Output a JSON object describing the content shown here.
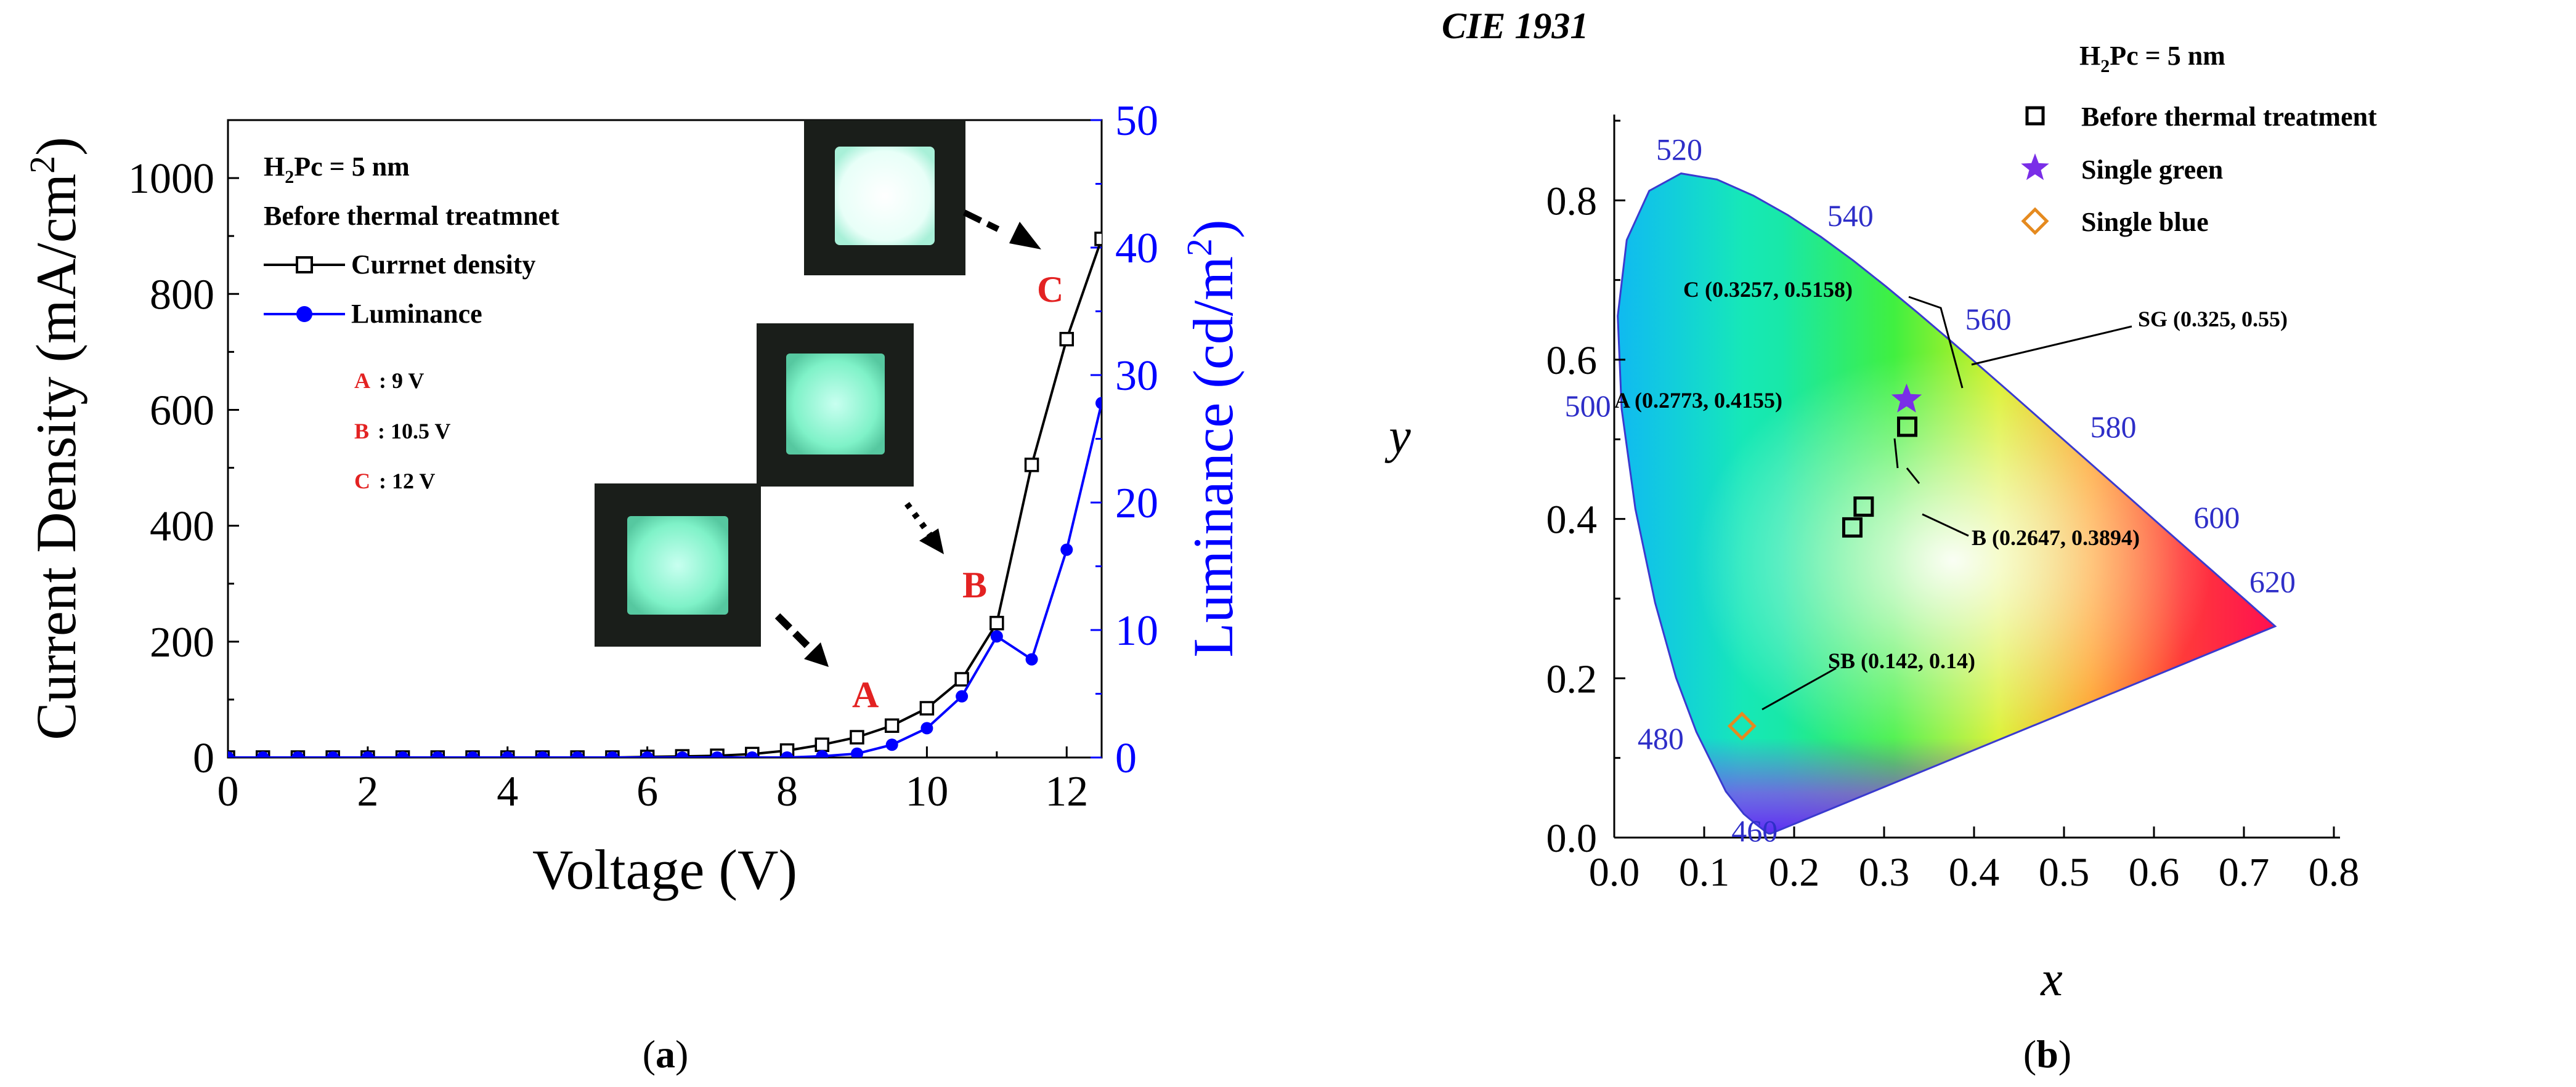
{
  "chart_data": [
    {
      "panel": "a",
      "type": "line",
      "caption_pre": "(",
      "caption_letter": "a",
      "caption_post": ")",
      "xlabel": "Voltage (V)",
      "ylabel_left": "Current Density (mA/cm",
      "ylabel_left_sup": "2",
      "ylabel_left_end": ")",
      "ylabel_right": "Luminance (cd/m",
      "ylabel_right_sup": "2",
      "ylabel_right_end": ")",
      "xlim": [
        0,
        12.5
      ],
      "ylim_left": [
        0,
        1100
      ],
      "ylim_right": [
        0,
        50
      ],
      "xticks": [
        0,
        2,
        4,
        6,
        8,
        10,
        12
      ],
      "yticks_left": [
        0,
        200,
        400,
        600,
        800,
        1000
      ],
      "yticks_right": [
        0,
        10,
        20,
        30,
        40,
        50
      ],
      "series": [
        {
          "name": "Currnet density",
          "axis": "left",
          "color": "#000000",
          "marker": "open-square",
          "x": [
            0,
            0.5,
            1,
            1.5,
            2,
            2.5,
            3,
            3.5,
            4,
            4.5,
            5,
            5.5,
            6,
            6.5,
            7,
            7.5,
            8,
            8.5,
            9,
            9.5,
            10,
            10.5,
            11,
            11.5,
            12,
            12.5
          ],
          "y": [
            0,
            0,
            0,
            0,
            0,
            0,
            0,
            0,
            0,
            0,
            0,
            0,
            1,
            2,
            3,
            6,
            12,
            22,
            35,
            55,
            85,
            135,
            232,
            505,
            722,
            895
          ]
        },
        {
          "name": "Luminance",
          "axis": "right",
          "color": "#0000ff",
          "marker": "filled-circle",
          "x": [
            0,
            0.5,
            1,
            1.5,
            2,
            2.5,
            3,
            3.5,
            4,
            4.5,
            5,
            5.5,
            6,
            6.5,
            7,
            7.5,
            8,
            8.5,
            9,
            9.5,
            10,
            10.5,
            11,
            11.5,
            12,
            12.5
          ],
          "y": [
            0,
            0,
            0,
            0,
            0,
            0,
            0,
            0,
            0,
            0,
            0,
            0,
            0,
            0,
            0,
            0,
            0,
            0.1,
            0.3,
            1.0,
            2.3,
            4.8,
            9.5,
            7.7,
            16.3,
            27.8
          ]
        }
      ],
      "legend": {
        "title_pre": "H",
        "title_sub": "2",
        "title_post": "Pc = 5 nm",
        "subtitle": "Before thermal treatmnet",
        "entries": [
          "Currnet density",
          "Luminance"
        ],
        "voltage_labels": [
          {
            "letter": "A",
            "value": ": 9 V"
          },
          {
            "letter": "B",
            "value": ": 10.5 V"
          },
          {
            "letter": "C",
            "value": ": 12 V"
          }
        ]
      },
      "annotations": [
        "A",
        "B",
        "C"
      ],
      "colors": {
        "annotation": "#e32222",
        "current": "#000000",
        "luminance": "#0000ff",
        "emission": "#7ff2c8"
      }
    },
    {
      "panel": "b",
      "type": "scatter",
      "title": "CIE 1931",
      "caption_pre": "(",
      "caption_letter": "b",
      "caption_post": ")",
      "xlabel": "x",
      "ylabel": "y",
      "xlim": [
        0.0,
        0.8
      ],
      "ylim": [
        0.0,
        0.9
      ],
      "xticks": [
        "0.0",
        "0.1",
        "0.2",
        "0.3",
        "0.4",
        "0.5",
        "0.6",
        "0.7",
        "0.8"
      ],
      "yticks": [
        "0.0",
        "0.2",
        "0.4",
        "0.6",
        "0.8"
      ],
      "wavelength_labels": [
        {
          "nm": "460",
          "x": 0.144,
          "y": 0.03
        },
        {
          "nm": "480",
          "x": 0.091,
          "y": 0.133
        },
        {
          "nm": "500",
          "x": 0.008,
          "y": 0.538
        },
        {
          "nm": "520",
          "x": 0.074,
          "y": 0.834
        },
        {
          "nm": "540",
          "x": 0.23,
          "y": 0.754
        },
        {
          "nm": "560",
          "x": 0.373,
          "y": 0.624
        },
        {
          "nm": "580",
          "x": 0.512,
          "y": 0.487
        },
        {
          "nm": "600",
          "x": 0.627,
          "y": 0.372
        },
        {
          "nm": "620",
          "x": 0.691,
          "y": 0.308
        }
      ],
      "locus": [
        [
          0.1741,
          0.005
        ],
        [
          0.1738,
          0.0049
        ],
        [
          0.1714,
          0.0051
        ],
        [
          0.1689,
          0.0069
        ],
        [
          0.1644,
          0.0109
        ],
        [
          0.1566,
          0.0177
        ],
        [
          0.144,
          0.0297
        ],
        [
          0.1241,
          0.0578
        ],
        [
          0.0913,
          0.1327
        ],
        [
          0.0687,
          0.2007
        ],
        [
          0.0454,
          0.295
        ],
        [
          0.0235,
          0.4127
        ],
        [
          0.0082,
          0.5384
        ],
        [
          0.0039,
          0.6548
        ],
        [
          0.0139,
          0.7502
        ],
        [
          0.0389,
          0.812
        ],
        [
          0.0743,
          0.8338
        ],
        [
          0.1142,
          0.8262
        ],
        [
          0.1547,
          0.8059
        ],
        [
          0.1929,
          0.7816
        ],
        [
          0.2296,
          0.7543
        ],
        [
          0.2658,
          0.7243
        ],
        [
          0.3016,
          0.6923
        ],
        [
          0.3373,
          0.6589
        ],
        [
          0.3731,
          0.6245
        ],
        [
          0.4087,
          0.5896
        ],
        [
          0.4441,
          0.5547
        ],
        [
          0.4788,
          0.5202
        ],
        [
          0.5125,
          0.4866
        ],
        [
          0.5448,
          0.4544
        ],
        [
          0.5752,
          0.4242
        ],
        [
          0.6029,
          0.3965
        ],
        [
          0.627,
          0.3725
        ],
        [
          0.6482,
          0.3514
        ],
        [
          0.6658,
          0.334
        ],
        [
          0.6801,
          0.3197
        ],
        [
          0.6915,
          0.3083
        ],
        [
          0.7006,
          0.2993
        ],
        [
          0.714,
          0.2859
        ],
        [
          0.7347,
          0.2653
        ]
      ],
      "points": [
        {
          "id": "A",
          "label": "A (0.2773, 0.4155)",
          "x": 0.2773,
          "y": 0.4155,
          "series": "Before thermal treatment"
        },
        {
          "id": "B",
          "label": "B (0.2647, 0.3894)",
          "x": 0.2647,
          "y": 0.3894,
          "series": "Before thermal treatment"
        },
        {
          "id": "C",
          "label": "C (0.3257, 0.5158)",
          "x": 0.3257,
          "y": 0.5158,
          "series": "Before thermal treatment"
        },
        {
          "id": "SG",
          "label": "SG (0.325, 0.55)",
          "x": 0.325,
          "y": 0.55,
          "series": "Single green"
        },
        {
          "id": "SB",
          "label": "SB (0.142, 0.14)",
          "x": 0.142,
          "y": 0.14,
          "series": "Single blue"
        }
      ],
      "legend": {
        "title_pre": "H",
        "title_sub": "2",
        "title_post": "Pc = 5 nm",
        "entries": [
          {
            "name": "Before thermal treatment",
            "marker": "open-square",
            "color": "#000000"
          },
          {
            "name": "Single green",
            "marker": "star",
            "color": "#7a2ee8"
          },
          {
            "name": "Single blue",
            "marker": "open-diamond",
            "color": "#e58a1f"
          }
        ]
      },
      "colors": {
        "wavelength": "#2e2ec8",
        "locus": "#3a3acf"
      }
    }
  ]
}
